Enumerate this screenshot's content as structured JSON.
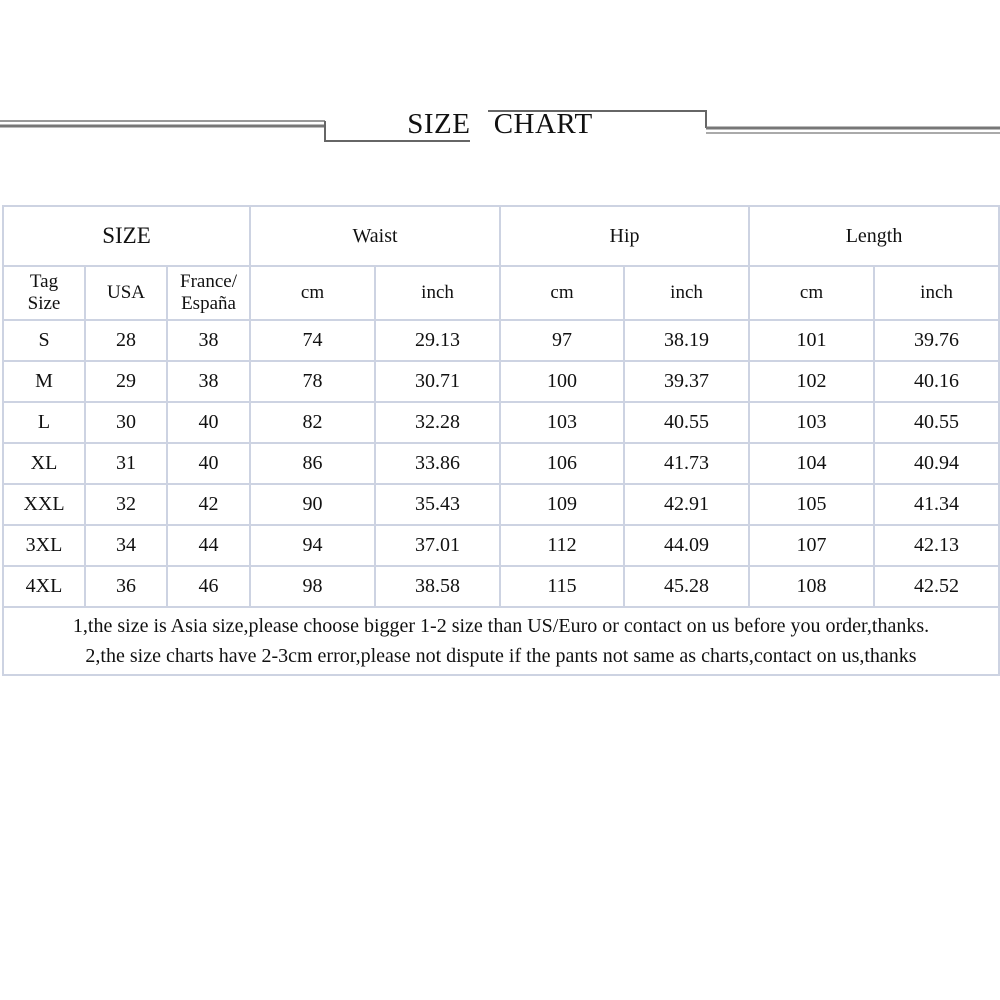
{
  "title": {
    "part1": "SIZE",
    "part2": "CHART"
  },
  "chart_data": {
    "type": "table",
    "group_headers": [
      "SIZE",
      "Waist",
      "Hip",
      "Length"
    ],
    "sub_headers": [
      "Tag Size",
      "USA",
      "France/ España",
      "cm",
      "inch",
      "cm",
      "inch",
      "cm",
      "inch"
    ],
    "rows": [
      [
        "S",
        "28",
        "38",
        "74",
        "29.13",
        "97",
        "38.19",
        "101",
        "39.76"
      ],
      [
        "M",
        "29",
        "38",
        "78",
        "30.71",
        "100",
        "39.37",
        "102",
        "40.16"
      ],
      [
        "L",
        "30",
        "40",
        "82",
        "32.28",
        "103",
        "40.55",
        "103",
        "40.55"
      ],
      [
        "XL",
        "31",
        "40",
        "86",
        "33.86",
        "106",
        "41.73",
        "104",
        "40.94"
      ],
      [
        "XXL",
        "32",
        "42",
        "90",
        "35.43",
        "109",
        "42.91",
        "105",
        "41.34"
      ],
      [
        "3XL",
        "34",
        "44",
        "94",
        "37.01",
        "112",
        "44.09",
        "107",
        "42.13"
      ],
      [
        "4XL",
        "36",
        "46",
        "98",
        "38.58",
        "115",
        "45.28",
        "108",
        "42.52"
      ]
    ],
    "notes": [
      "1,the size is Asia size,please choose bigger 1-2 size than US/Euro or contact on us before you order,thanks.",
      "2,the size charts have 2-3cm error,please not dispute if the pants not same as charts,contact on us,thanks"
    ],
    "border_color": "#cdd3e2"
  }
}
